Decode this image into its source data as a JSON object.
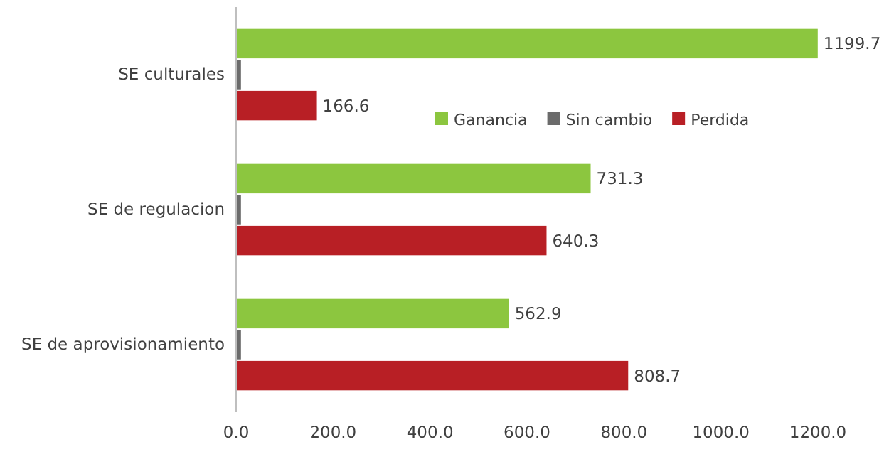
{
  "chart_data": {
    "type": "bar",
    "orientation": "horizontal",
    "categories": [
      "SE culturales",
      "SE de regulacion",
      "SE de aprovisionamiento"
    ],
    "series": [
      {
        "name": "Ganancia",
        "color": "#8cc63f",
        "values": [
          1199.7,
          731.3,
          562.9
        ],
        "value_labels": [
          "1199.7",
          "731.3",
          "562.9"
        ]
      },
      {
        "name": "Sin cambio",
        "color": "#6b6b6b",
        "values": [
          10,
          10,
          10
        ]
      },
      {
        "name": "Perdida",
        "color": "#b81f25",
        "values": [
          166.6,
          640.3,
          808.7
        ],
        "value_labels": [
          "166.6",
          "640.3",
          "808.7"
        ]
      }
    ],
    "xlim": [
      0,
      1200
    ],
    "xticks": [
      {
        "value": 0,
        "label": "0.0"
      },
      {
        "value": 200,
        "label": "200.0"
      },
      {
        "value": 400,
        "label": "400.0"
      },
      {
        "value": 600,
        "label": "600.0"
      },
      {
        "value": 800,
        "label": "800.0"
      },
      {
        "value": 1000,
        "label": "1000.0"
      },
      {
        "value": 1200,
        "label": "1200.0"
      }
    ],
    "legend": "top right"
  }
}
